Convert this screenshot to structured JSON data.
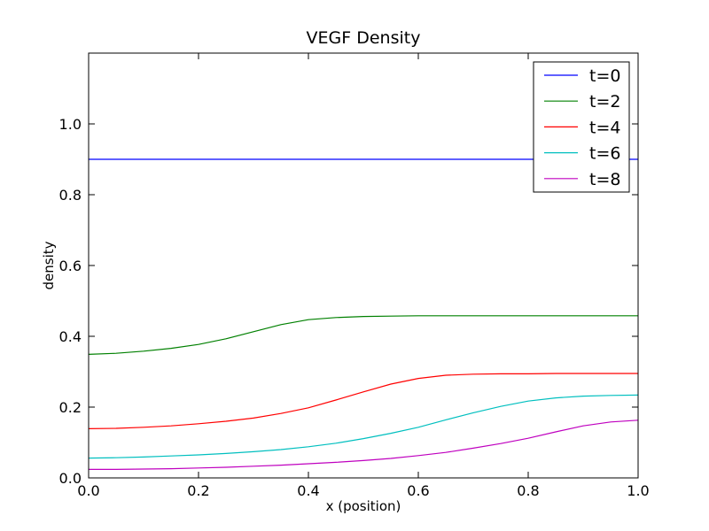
{
  "chart_data": {
    "type": "line",
    "title": "VEGF Density",
    "xlabel": "x (position)",
    "ylabel": "density",
    "xlim": [
      0.0,
      1.0
    ],
    "ylim": [
      0.0,
      1.2
    ],
    "xticks": [
      0.0,
      0.2,
      0.4,
      0.6,
      0.8,
      1.0
    ],
    "xtick_labels": [
      "0.0",
      "0.2",
      "0.4",
      "0.6",
      "0.8",
      "1.0"
    ],
    "yticks": [
      0.0,
      0.2,
      0.4,
      0.6,
      0.8,
      1.0
    ],
    "ytick_labels": [
      "0.0",
      "0.2",
      "0.4",
      "0.6",
      "0.8",
      "1.0"
    ],
    "grid": false,
    "legend_position": "top-right",
    "x": [
      0.0,
      0.05,
      0.1,
      0.15,
      0.2,
      0.25,
      0.3,
      0.35,
      0.4,
      0.45,
      0.5,
      0.55,
      0.6,
      0.65,
      0.7,
      0.75,
      0.8,
      0.85,
      0.9,
      0.95,
      1.0
    ],
    "series": [
      {
        "name": "t=0",
        "color": "#0000ff",
        "values": [
          0.9,
          0.9,
          0.9,
          0.9,
          0.9,
          0.9,
          0.9,
          0.9,
          0.9,
          0.9,
          0.9,
          0.9,
          0.9,
          0.9,
          0.9,
          0.9,
          0.9,
          0.9,
          0.9,
          0.9,
          0.9
        ]
      },
      {
        "name": "t=2",
        "color": "#008000",
        "values": [
          0.349,
          0.352,
          0.358,
          0.366,
          0.377,
          0.393,
          0.413,
          0.433,
          0.447,
          0.453,
          0.456,
          0.457,
          0.458,
          0.458,
          0.458,
          0.458,
          0.458,
          0.458,
          0.458,
          0.458,
          0.458
        ]
      },
      {
        "name": "t=4",
        "color": "#ff0000",
        "values": [
          0.139,
          0.14,
          0.143,
          0.147,
          0.153,
          0.16,
          0.169,
          0.182,
          0.198,
          0.22,
          0.243,
          0.265,
          0.281,
          0.29,
          0.293,
          0.294,
          0.294,
          0.295,
          0.295,
          0.295,
          0.295
        ]
      },
      {
        "name": "t=6",
        "color": "#00bfbf",
        "values": [
          0.056,
          0.057,
          0.059,
          0.062,
          0.065,
          0.069,
          0.074,
          0.08,
          0.088,
          0.098,
          0.111,
          0.126,
          0.143,
          0.164,
          0.184,
          0.202,
          0.217,
          0.226,
          0.231,
          0.233,
          0.234
        ]
      },
      {
        "name": "t=8",
        "color": "#bf00bf",
        "values": [
          0.024,
          0.024,
          0.025,
          0.026,
          0.028,
          0.03,
          0.033,
          0.036,
          0.04,
          0.044,
          0.049,
          0.055,
          0.063,
          0.072,
          0.084,
          0.097,
          0.112,
          0.13,
          0.147,
          0.158,
          0.163
        ]
      }
    ]
  }
}
